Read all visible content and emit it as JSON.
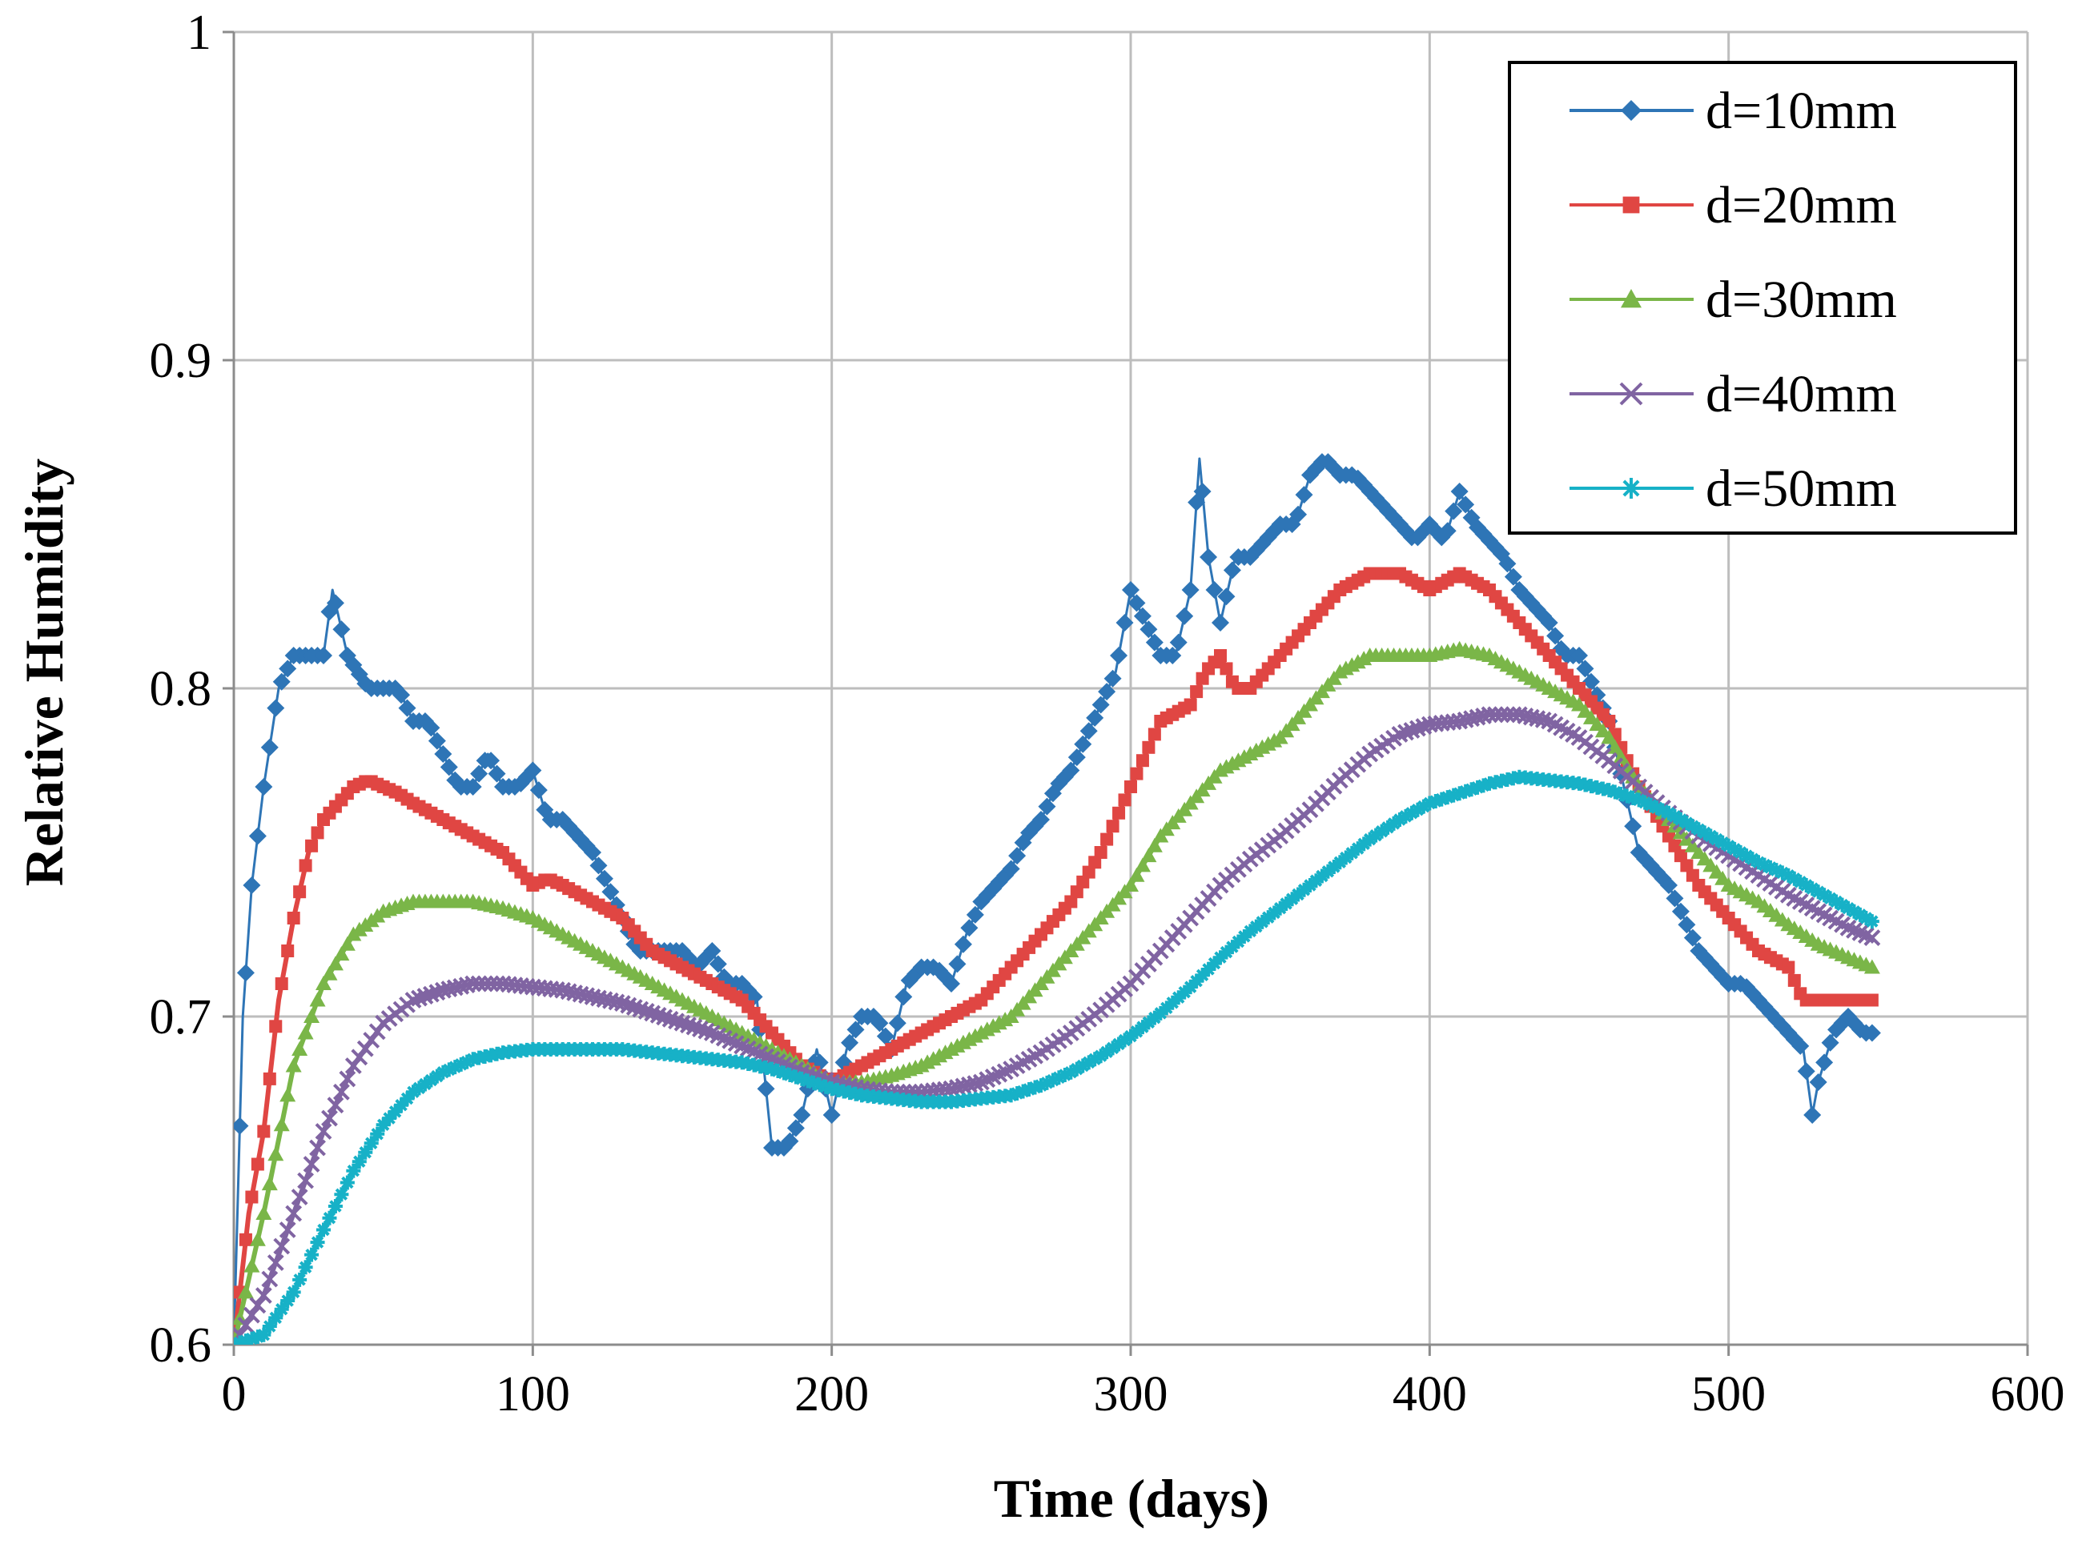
{
  "chart_data": {
    "type": "line",
    "title": "",
    "xlabel": "Time (days)",
    "ylabel": "Relative Humidity",
    "xlim": [
      0,
      600
    ],
    "ylim": [
      0.6,
      1
    ],
    "xticks": [
      0,
      100,
      200,
      300,
      400,
      500,
      600
    ],
    "yticks": [
      0.6,
      0.7,
      0.8,
      0.9,
      1
    ],
    "xtick_labels": [
      "0",
      "100",
      "200",
      "300",
      "400",
      "500",
      "600"
    ],
    "ytick_labels": [
      "0.6",
      "0.7",
      "0.8",
      "0.9",
      "1"
    ],
    "grid": true,
    "legend_position": "top-right",
    "series": [
      {
        "name": "d=10mm",
        "color": "#2E75B6",
        "marker": "diamond",
        "x": [
          0,
          3,
          6,
          10,
          15,
          20,
          25,
          30,
          33,
          38,
          45,
          50,
          55,
          60,
          65,
          70,
          75,
          80,
          85,
          90,
          95,
          100,
          105,
          110,
          115,
          120,
          125,
          130,
          135,
          140,
          145,
          150,
          155,
          160,
          165,
          170,
          175,
          180,
          185,
          190,
          195,
          200,
          205,
          210,
          215,
          220,
          225,
          230,
          235,
          240,
          245,
          250,
          255,
          260,
          265,
          270,
          275,
          280,
          285,
          290,
          295,
          300,
          305,
          310,
          315,
          320,
          323,
          326,
          330,
          335,
          340,
          345,
          350,
          355,
          360,
          365,
          370,
          375,
          380,
          385,
          390,
          395,
          400,
          405,
          410,
          415,
          420,
          425,
          430,
          435,
          440,
          445,
          450,
          455,
          460,
          465,
          470,
          475,
          480,
          485,
          490,
          495,
          500,
          505,
          510,
          515,
          520,
          525,
          528,
          530,
          535,
          540,
          545,
          548
        ],
        "values": [
          0.6,
          0.7,
          0.74,
          0.77,
          0.8,
          0.81,
          0.81,
          0.81,
          0.83,
          0.81,
          0.8,
          0.8,
          0.8,
          0.79,
          0.79,
          0.78,
          0.77,
          0.77,
          0.78,
          0.77,
          0.77,
          0.775,
          0.76,
          0.76,
          0.755,
          0.75,
          0.74,
          0.73,
          0.72,
          0.72,
          0.72,
          0.72,
          0.715,
          0.72,
          0.71,
          0.71,
          0.705,
          0.66,
          0.66,
          0.67,
          0.69,
          0.67,
          0.69,
          0.7,
          0.7,
          0.69,
          0.71,
          0.715,
          0.715,
          0.71,
          0.725,
          0.735,
          0.74,
          0.745,
          0.755,
          0.76,
          0.77,
          0.775,
          0.785,
          0.795,
          0.805,
          0.83,
          0.82,
          0.81,
          0.81,
          0.83,
          0.87,
          0.84,
          0.82,
          0.84,
          0.84,
          0.845,
          0.85,
          0.85,
          0.865,
          0.87,
          0.865,
          0.865,
          0.86,
          0.855,
          0.85,
          0.845,
          0.85,
          0.845,
          0.86,
          0.85,
          0.845,
          0.84,
          0.83,
          0.825,
          0.82,
          0.81,
          0.81,
          0.8,
          0.79,
          0.77,
          0.75,
          0.745,
          0.74,
          0.73,
          0.72,
          0.715,
          0.71,
          0.71,
          0.705,
          0.7,
          0.695,
          0.69,
          0.67,
          0.68,
          0.695,
          0.7,
          0.695,
          0.695
        ]
      },
      {
        "name": "d=20mm",
        "color": "#E04643",
        "marker": "square",
        "x": [
          0,
          5,
          10,
          15,
          20,
          25,
          30,
          35,
          40,
          45,
          50,
          55,
          60,
          70,
          80,
          90,
          95,
          100,
          105,
          110,
          120,
          130,
          140,
          150,
          160,
          170,
          180,
          190,
          200,
          210,
          220,
          230,
          240,
          250,
          260,
          270,
          280,
          290,
          300,
          310,
          320,
          325,
          330,
          335,
          340,
          350,
          360,
          370,
          380,
          390,
          400,
          410,
          420,
          430,
          440,
          450,
          460,
          470,
          480,
          490,
          500,
          510,
          520,
          525,
          530,
          540,
          548
        ],
        "values": [
          0.6,
          0.64,
          0.665,
          0.705,
          0.73,
          0.75,
          0.76,
          0.765,
          0.77,
          0.772,
          0.77,
          0.768,
          0.765,
          0.76,
          0.755,
          0.75,
          0.745,
          0.74,
          0.742,
          0.74,
          0.735,
          0.73,
          0.72,
          0.715,
          0.71,
          0.705,
          0.695,
          0.685,
          0.68,
          0.685,
          0.69,
          0.695,
          0.7,
          0.705,
          0.715,
          0.725,
          0.735,
          0.75,
          0.77,
          0.79,
          0.795,
          0.805,
          0.81,
          0.8,
          0.8,
          0.81,
          0.82,
          0.83,
          0.835,
          0.835,
          0.83,
          0.835,
          0.83,
          0.82,
          0.81,
          0.8,
          0.79,
          0.77,
          0.755,
          0.74,
          0.73,
          0.72,
          0.715,
          0.705,
          0.705,
          0.705,
          0.705
        ]
      },
      {
        "name": "d=30mm",
        "color": "#7AB648",
        "marker": "triangle",
        "x": [
          0,
          10,
          20,
          30,
          40,
          50,
          60,
          70,
          80,
          90,
          100,
          110,
          120,
          130,
          140,
          150,
          160,
          170,
          180,
          190,
          200,
          210,
          220,
          230,
          240,
          250,
          260,
          270,
          280,
          290,
          300,
          310,
          320,
          330,
          340,
          350,
          360,
          370,
          380,
          390,
          400,
          410,
          420,
          430,
          440,
          450,
          460,
          470,
          480,
          490,
          500,
          510,
          520,
          530,
          540,
          548
        ],
        "values": [
          0.6,
          0.64,
          0.685,
          0.71,
          0.725,
          0.732,
          0.735,
          0.735,
          0.735,
          0.733,
          0.73,
          0.725,
          0.72,
          0.715,
          0.71,
          0.705,
          0.7,
          0.695,
          0.69,
          0.685,
          0.68,
          0.68,
          0.682,
          0.685,
          0.69,
          0.695,
          0.7,
          0.71,
          0.72,
          0.73,
          0.74,
          0.755,
          0.765,
          0.775,
          0.78,
          0.785,
          0.795,
          0.805,
          0.81,
          0.81,
          0.81,
          0.812,
          0.81,
          0.805,
          0.8,
          0.795,
          0.785,
          0.77,
          0.76,
          0.75,
          0.74,
          0.735,
          0.728,
          0.722,
          0.718,
          0.715
        ]
      },
      {
        "name": "d=40mm",
        "color": "#8064A2",
        "marker": "x",
        "x": [
          0,
          10,
          20,
          30,
          40,
          50,
          60,
          70,
          80,
          90,
          100,
          110,
          120,
          130,
          140,
          150,
          160,
          170,
          180,
          190,
          200,
          210,
          220,
          230,
          240,
          250,
          260,
          270,
          280,
          290,
          300,
          310,
          320,
          330,
          340,
          350,
          360,
          370,
          380,
          390,
          400,
          410,
          420,
          430,
          440,
          450,
          460,
          470,
          480,
          490,
          500,
          510,
          520,
          530,
          540,
          548
        ],
        "values": [
          0.6,
          0.615,
          0.64,
          0.665,
          0.685,
          0.698,
          0.705,
          0.708,
          0.71,
          0.71,
          0.709,
          0.708,
          0.706,
          0.704,
          0.701,
          0.698,
          0.695,
          0.691,
          0.687,
          0.683,
          0.68,
          0.678,
          0.677,
          0.677,
          0.678,
          0.68,
          0.684,
          0.689,
          0.695,
          0.702,
          0.71,
          0.72,
          0.73,
          0.74,
          0.748,
          0.755,
          0.763,
          0.772,
          0.78,
          0.786,
          0.789,
          0.79,
          0.792,
          0.792,
          0.79,
          0.785,
          0.778,
          0.77,
          0.762,
          0.755,
          0.749,
          0.743,
          0.737,
          0.732,
          0.727,
          0.724
        ]
      },
      {
        "name": "d=50mm",
        "color": "#17B1C7",
        "marker": "star",
        "x": [
          0,
          10,
          20,
          30,
          40,
          50,
          60,
          70,
          80,
          90,
          100,
          110,
          120,
          130,
          140,
          150,
          160,
          170,
          180,
          190,
          200,
          210,
          220,
          230,
          240,
          250,
          260,
          270,
          280,
          290,
          300,
          310,
          320,
          330,
          340,
          350,
          360,
          370,
          380,
          390,
          400,
          410,
          420,
          430,
          440,
          450,
          460,
          470,
          480,
          490,
          500,
          510,
          520,
          530,
          540,
          548
        ],
        "values": [
          0.6,
          0.603,
          0.616,
          0.635,
          0.653,
          0.667,
          0.677,
          0.683,
          0.687,
          0.689,
          0.69,
          0.69,
          0.69,
          0.69,
          0.689,
          0.688,
          0.687,
          0.686,
          0.684,
          0.681,
          0.678,
          0.676,
          0.675,
          0.674,
          0.674,
          0.675,
          0.676,
          0.679,
          0.683,
          0.688,
          0.694,
          0.701,
          0.709,
          0.718,
          0.726,
          0.733,
          0.74,
          0.747,
          0.754,
          0.76,
          0.765,
          0.768,
          0.771,
          0.773,
          0.772,
          0.771,
          0.769,
          0.766,
          0.762,
          0.757,
          0.752,
          0.747,
          0.743,
          0.738,
          0.733,
          0.729
        ]
      }
    ]
  }
}
